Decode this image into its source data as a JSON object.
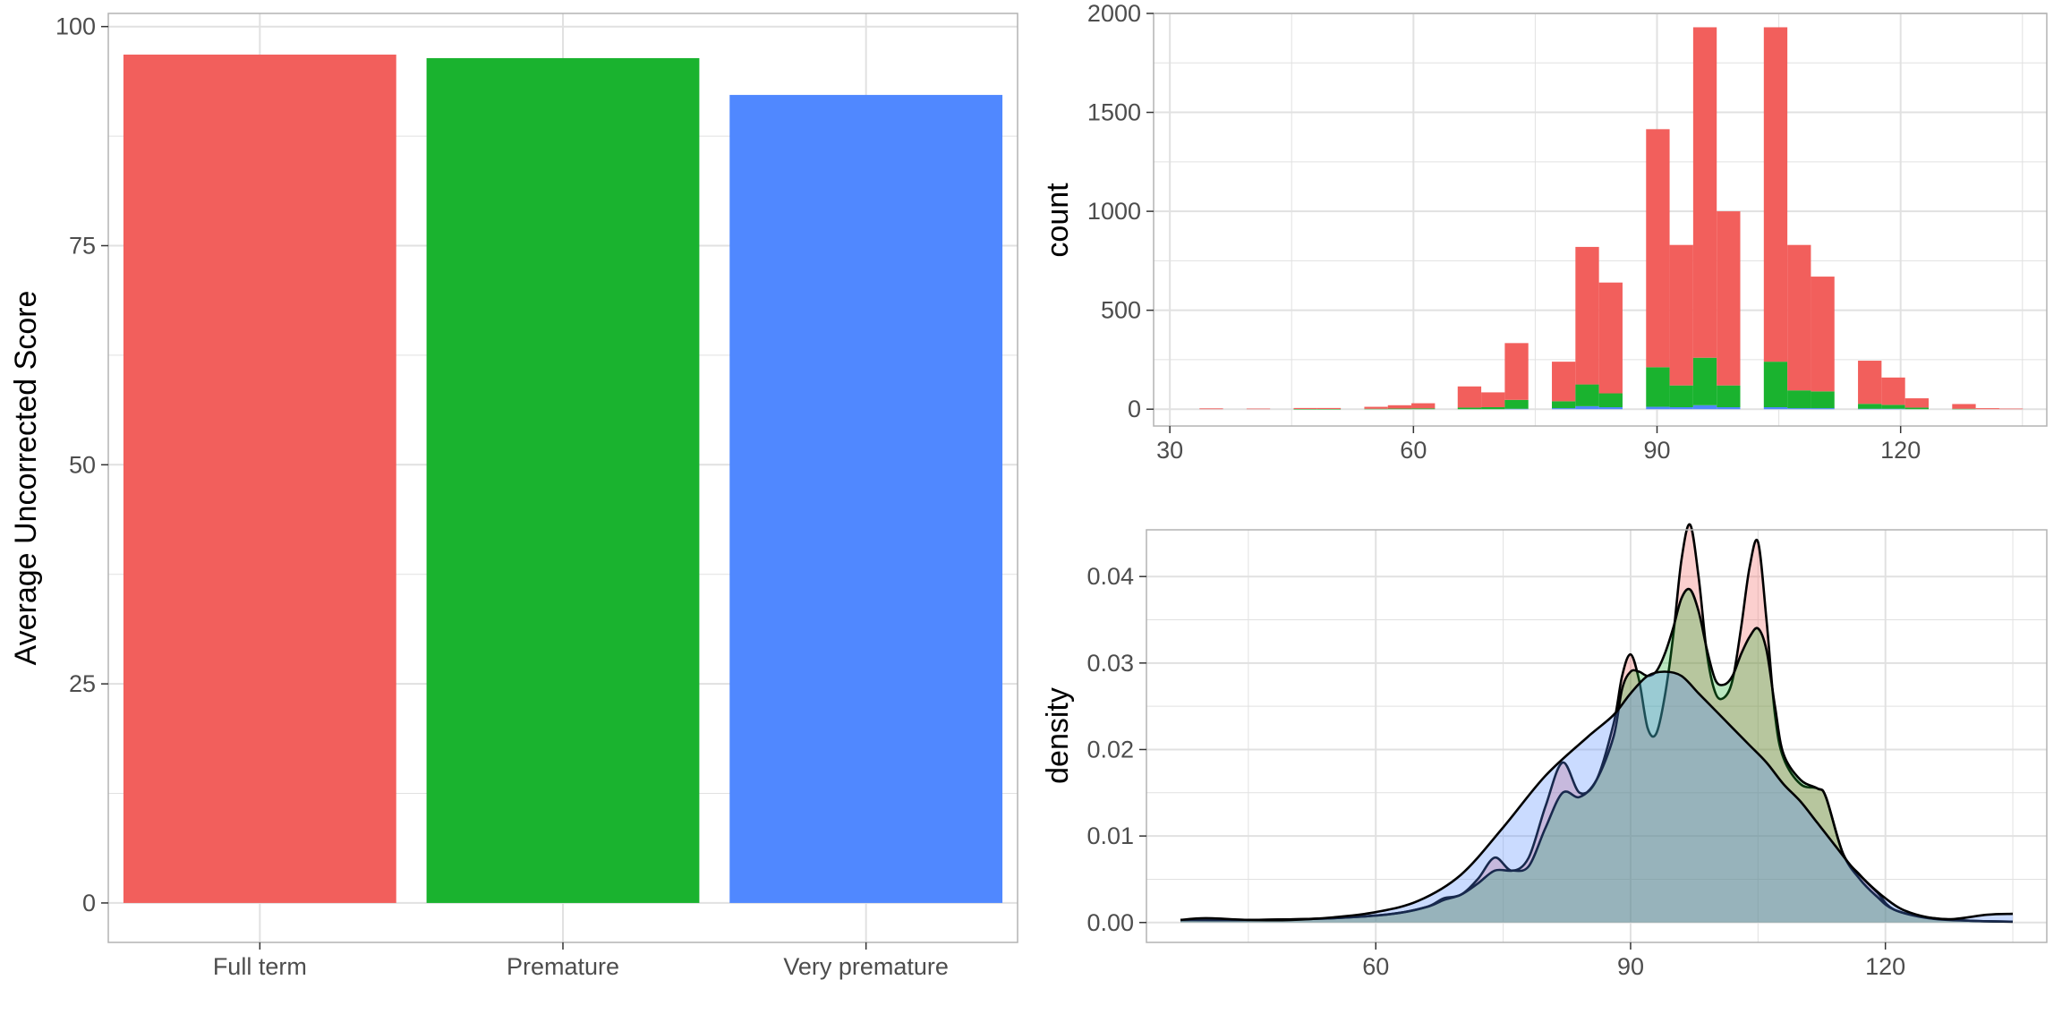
{
  "colors": {
    "full_term": "#F25F5C",
    "premature": "#1AB32F",
    "very_premature": "#5088FF",
    "grid": "#e1e1e1",
    "panel_border": "#b3b3b3"
  },
  "chart_data": [
    {
      "type": "bar",
      "title": "",
      "xlabel": "",
      "ylabel": "Average Uncorrected Score",
      "categories": [
        "Full term",
        "Premature",
        "Very premature"
      ],
      "values": [
        96.8,
        96.4,
        92.2
      ],
      "bar_colors": [
        "#F25F5C",
        "#1AB32F",
        "#5088FF"
      ],
      "ylim": [
        -4.5,
        101.5
      ],
      "y_ticks": [
        0,
        25,
        50,
        75,
        100
      ],
      "y_tick_labels": [
        "0",
        "25",
        "50",
        "75",
        "100"
      ],
      "grid": true
    },
    {
      "type": "bar",
      "subtype": "stacked-histogram",
      "title": "",
      "xlabel": "",
      "ylabel": "count",
      "xlim": [
        28,
        138
      ],
      "ylim": [
        -85,
        2000
      ],
      "x_ticks": [
        30,
        60,
        90,
        120
      ],
      "x_tick_labels": [
        "30",
        "60",
        "90",
        "120"
      ],
      "y_ticks": [
        0,
        500,
        1000,
        1500,
        2000
      ],
      "y_tick_labels": [
        "0",
        "500",
        "1000",
        "1500",
        "2000"
      ],
      "bin_width": 2.9,
      "bin_centers": [
        35.1,
        40.9,
        46.7,
        49.6,
        55.4,
        58.3,
        61.2,
        66.9,
        69.8,
        72.7,
        78.5,
        81.4,
        84.3,
        90.1,
        93.0,
        95.9,
        98.8,
        104.6,
        107.5,
        110.4,
        116.2,
        119.1,
        122.0,
        127.8,
        130.7,
        133.6
      ],
      "series": [
        {
          "name": "Very premature",
          "color": "#5088FF",
          "values": [
            0,
            0,
            0,
            0,
            0,
            0,
            0,
            0,
            0,
            2,
            5,
            15,
            10,
            12,
            10,
            20,
            10,
            10,
            5,
            5,
            2,
            2,
            0,
            0,
            0,
            0
          ]
        },
        {
          "name": "Premature",
          "color": "#1AB32F",
          "values": [
            0,
            0,
            1,
            1,
            2,
            3,
            4,
            8,
            10,
            45,
            35,
            110,
            70,
            200,
            110,
            240,
            110,
            230,
            90,
            85,
            25,
            20,
            8,
            2,
            0,
            0
          ]
        },
        {
          "name": "Full term",
          "color": "#F25F5C",
          "values": [
            4,
            3,
            5,
            5,
            10,
            17,
            26,
            107,
            75,
            287,
            200,
            695,
            560,
            1203,
            710,
            1670,
            880,
            1690,
            735,
            580,
            218,
            138,
            47,
            24,
            5,
            3
          ]
        }
      ],
      "grid": true
    },
    {
      "type": "area",
      "subtype": "density",
      "title": "",
      "xlabel": "",
      "ylabel": "density",
      "xlim": [
        33,
        139
      ],
      "ylim": [
        -0.0023,
        0.0454
      ],
      "x_ticks": [
        60,
        90,
        120
      ],
      "x_tick_labels": [
        "60",
        "90",
        "120"
      ],
      "y_ticks": [
        0,
        0.01,
        0.02,
        0.03,
        0.04
      ],
      "y_tick_labels": [
        "0.00",
        "0.01",
        "0.02",
        "0.03",
        "0.04"
      ],
      "fill_opacity": 0.3,
      "series": [
        {
          "name": "Full term",
          "color": "#F25F5C",
          "x": [
            37,
            45,
            55,
            62,
            66,
            68,
            70,
            72,
            74,
            76,
            78,
            80,
            82,
            84,
            86,
            88,
            89,
            90,
            91,
            92,
            93,
            94,
            95,
            96,
            97,
            98,
            99,
            100,
            101,
            102,
            103,
            104,
            105,
            106,
            107,
            108,
            110,
            112,
            113,
            115,
            117,
            119,
            121,
            125,
            130,
            135
          ],
          "y": [
            0.0003,
            0.0003,
            0.0005,
            0.001,
            0.0018,
            0.0028,
            0.0032,
            0.005,
            0.0075,
            0.006,
            0.0075,
            0.0135,
            0.0185,
            0.015,
            0.0165,
            0.023,
            0.0285,
            0.031,
            0.028,
            0.0225,
            0.0218,
            0.026,
            0.033,
            0.042,
            0.046,
            0.04,
            0.031,
            0.0265,
            0.026,
            0.028,
            0.034,
            0.041,
            0.044,
            0.035,
            0.024,
            0.019,
            0.016,
            0.0155,
            0.0145,
            0.008,
            0.0055,
            0.0035,
            0.0015,
            0.0006,
            0.0002,
            0.0001
          ]
        },
        {
          "name": "Premature",
          "color": "#1AB32F",
          "x": [
            37,
            45,
            55,
            62,
            66,
            68,
            70,
            72,
            74,
            76,
            78,
            80,
            82,
            84,
            86,
            88,
            89,
            90,
            91,
            92,
            93,
            94,
            95,
            96,
            97,
            98,
            99,
            100,
            101,
            102,
            103,
            104,
            105,
            106,
            107,
            108,
            110,
            112,
            113,
            115,
            117,
            119,
            121,
            125,
            130,
            135
          ],
          "y": [
            0.0003,
            0.0003,
            0.0005,
            0.001,
            0.0018,
            0.0026,
            0.0032,
            0.0045,
            0.006,
            0.006,
            0.0065,
            0.011,
            0.015,
            0.0145,
            0.0165,
            0.0215,
            0.027,
            0.029,
            0.029,
            0.0285,
            0.029,
            0.031,
            0.034,
            0.0375,
            0.0385,
            0.036,
            0.0315,
            0.028,
            0.0275,
            0.0285,
            0.031,
            0.033,
            0.034,
            0.0315,
            0.025,
            0.0195,
            0.0165,
            0.0155,
            0.0145,
            0.008,
            0.005,
            0.003,
            0.0015,
            0.0005,
            0.0002,
            0.0001
          ]
        },
        {
          "name": "Very premature",
          "color": "#5088FF",
          "x": [
            37,
            40,
            45,
            50,
            55,
            60,
            65,
            70,
            75,
            80,
            85,
            88,
            90,
            92,
            94,
            96,
            98,
            100,
            102,
            104,
            106,
            108,
            110,
            112,
            114,
            116,
            118,
            120,
            122,
            125,
            128,
            132,
            135
          ],
          "y": [
            0.0003,
            0.0005,
            0.0003,
            0.0003,
            0.0006,
            0.0012,
            0.0025,
            0.0055,
            0.011,
            0.017,
            0.0215,
            0.024,
            0.0265,
            0.0285,
            0.029,
            0.0285,
            0.0265,
            0.0245,
            0.0225,
            0.0205,
            0.0185,
            0.016,
            0.014,
            0.0115,
            0.009,
            0.0065,
            0.0045,
            0.0028,
            0.0015,
            0.0006,
            0.0004,
            0.0009,
            0.001
          ]
        }
      ],
      "grid": true
    }
  ]
}
